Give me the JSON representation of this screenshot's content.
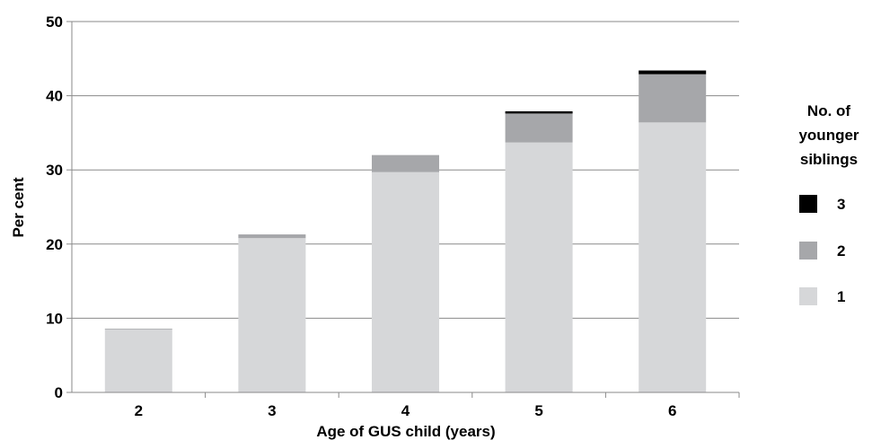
{
  "chart_data": {
    "type": "bar",
    "stacked": true,
    "categories": [
      "2",
      "3",
      "4",
      "5",
      "6"
    ],
    "series": [
      {
        "name": "1",
        "values": [
          8.5,
          20.8,
          29.7,
          33.7,
          36.4
        ],
        "color": "#d6d7d9"
      },
      {
        "name": "2",
        "values": [
          0.1,
          0.5,
          2.3,
          3.9,
          6.5
        ],
        "color": "#a6a7aa"
      },
      {
        "name": "3",
        "values": [
          0.0,
          0.0,
          0.0,
          0.3,
          0.5
        ],
        "color": "#000000"
      }
    ],
    "xlabel": "Age of GUS child (years)",
    "ylabel": "Per cent",
    "ylim": [
      0,
      50
    ],
    "yticks": [
      "0",
      "10",
      "20",
      "30",
      "40",
      "50"
    ],
    "grid": true,
    "legend": {
      "title_lines": [
        "No. of",
        "younger",
        "siblings"
      ],
      "placement": "right",
      "order": [
        "3",
        "2",
        "1"
      ]
    }
  }
}
